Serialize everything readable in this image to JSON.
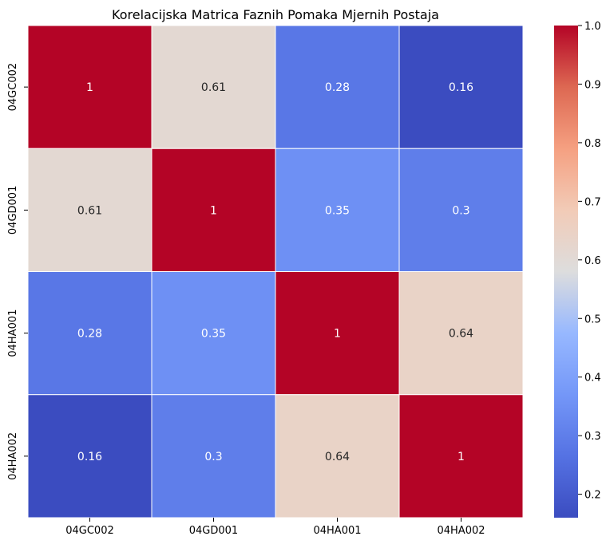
{
  "chart_data": {
    "type": "heatmap",
    "title": "Korelacijska Matrica Faznih Pomaka Mjernih Postaja",
    "xlabel": "",
    "ylabel": "",
    "x_categories": [
      "04GC002",
      "04GD001",
      "04HA001",
      "04HA002"
    ],
    "y_categories": [
      "04GC002",
      "04GD001",
      "04HA001",
      "04HA002"
    ],
    "values": [
      [
        1,
        0.61,
        0.28,
        0.16
      ],
      [
        0.61,
        1,
        0.35,
        0.3
      ],
      [
        0.28,
        0.35,
        1,
        0.64
      ],
      [
        0.16,
        0.3,
        0.64,
        1
      ]
    ],
    "annotations": [
      [
        "1",
        "0.61",
        "0.28",
        "0.16"
      ],
      [
        "0.61",
        "1",
        "0.35",
        "0.3"
      ],
      [
        "0.28",
        "0.35",
        "1",
        "0.64"
      ],
      [
        "0.16",
        "0.3",
        "0.64",
        "1"
      ]
    ],
    "colormap": "coolwarm",
    "vmin": 0.16,
    "vmax": 1.0,
    "colorbar_ticks": [
      "0.2",
      "0.3",
      "0.4",
      "0.5",
      "0.6",
      "0.7",
      "0.8",
      "0.9",
      "1.0"
    ],
    "cell_border_color": "#ffffff",
    "grid": false
  }
}
